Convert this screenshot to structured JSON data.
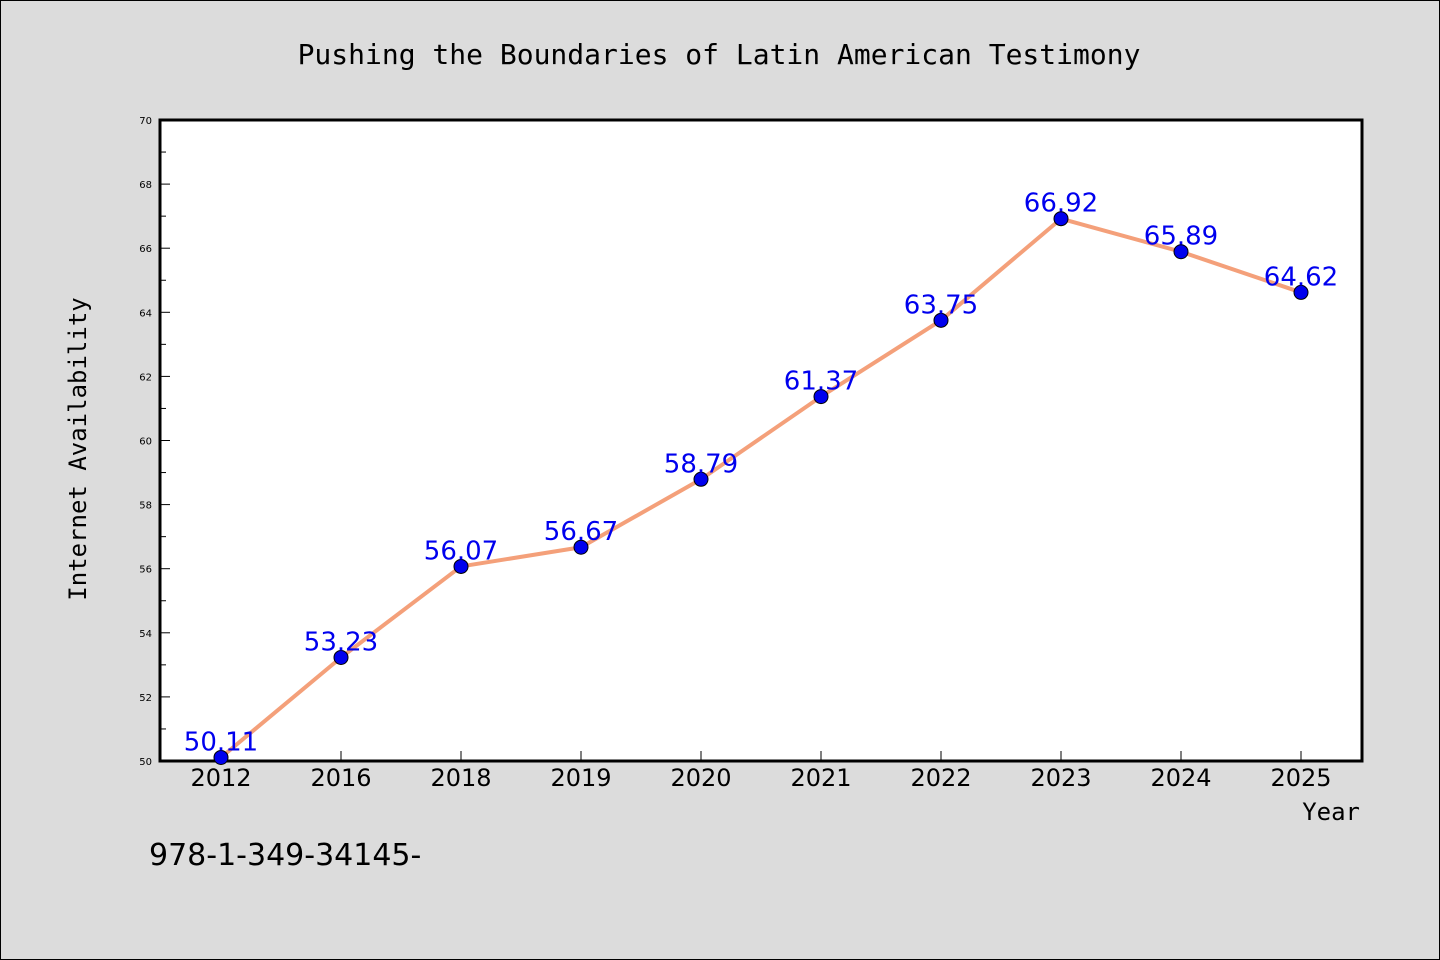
{
  "chart_data": {
    "type": "line",
    "title": "Pushing the Boundaries of Latin American Testimony",
    "xlabel": "Year",
    "ylabel": "Internet Availability",
    "categories": [
      "2012",
      "2016",
      "2018",
      "2019",
      "2020",
      "2021",
      "2022",
      "2023",
      "2024",
      "2025"
    ],
    "series": [
      {
        "values": [
          50.11,
          53.23,
          56.07,
          56.67,
          58.79,
          61.37,
          63.75,
          66.92,
          65.89,
          64.62
        ]
      }
    ],
    "ylim": [
      50,
      70
    ],
    "yticks": [
      50,
      52,
      54,
      56,
      58,
      60,
      62,
      64,
      66,
      68,
      70
    ],
    "data_labels": [
      "50.11",
      "53.23",
      "56.07",
      "56.67",
      "58.79",
      "61.37",
      "63.75",
      "66.92",
      "65.89",
      "64.62"
    ],
    "grid": false,
    "line_color": "#f4a07a",
    "marker_color": "#0000ee",
    "label_color": "#0000ee"
  },
  "footnote": "978-1-349-34145-"
}
